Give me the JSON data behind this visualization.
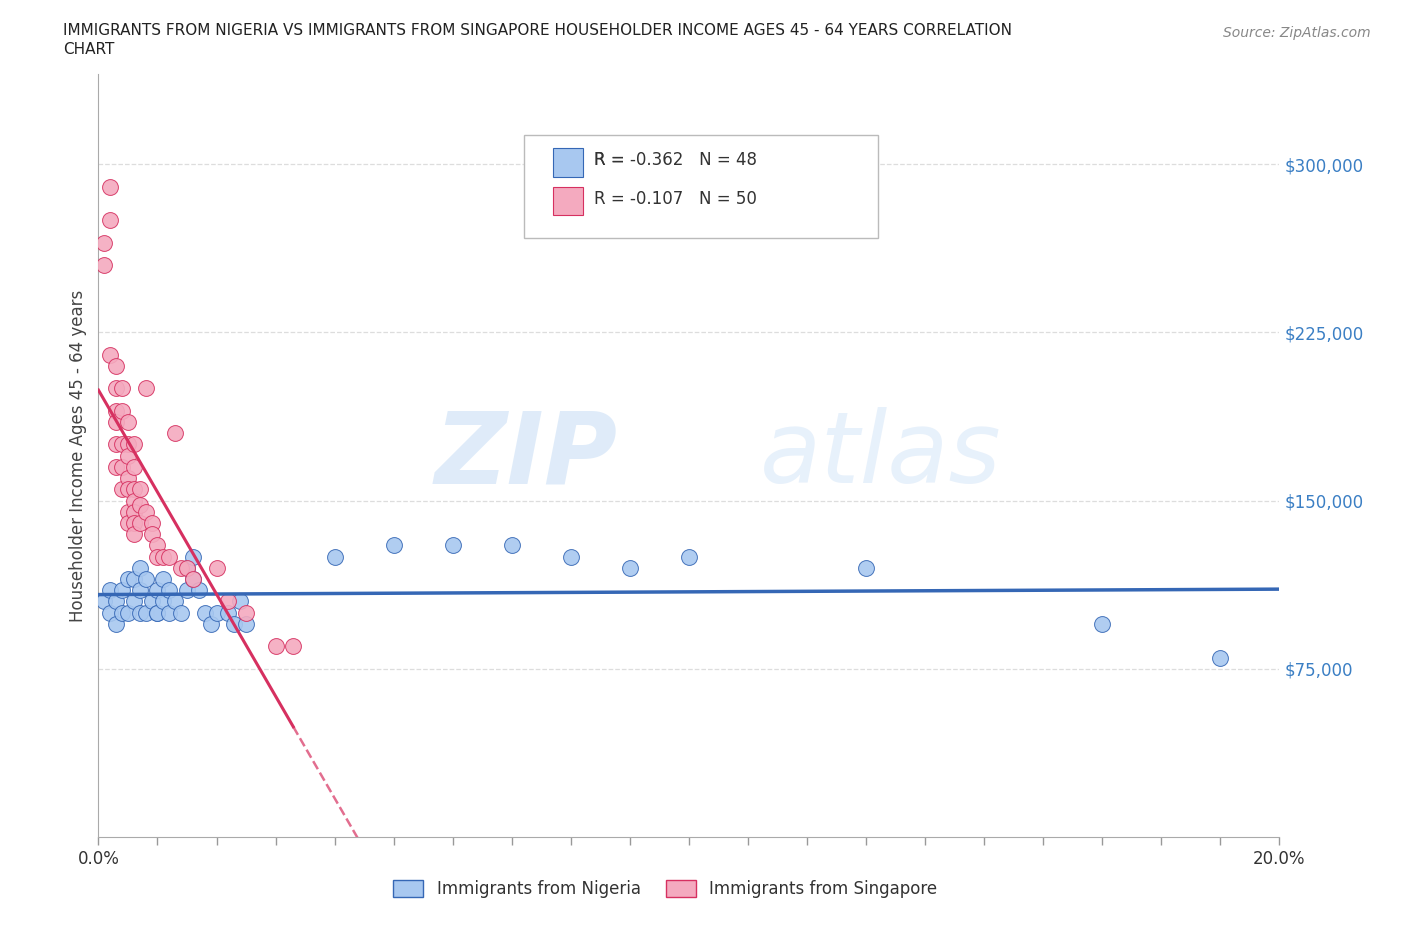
{
  "title_line1": "IMMIGRANTS FROM NIGERIA VS IMMIGRANTS FROM SINGAPORE HOUSEHOLDER INCOME AGES 45 - 64 YEARS CORRELATION",
  "title_line2": "CHART",
  "source": "Source: ZipAtlas.com",
  "ylabel": "Householder Income Ages 45 - 64 years",
  "ytick_labels": [
    "$75,000",
    "$150,000",
    "$225,000",
    "$300,000"
  ],
  "ytick_vals": [
    75000,
    150000,
    225000,
    300000
  ],
  "xlim": [
    0.0,
    0.2
  ],
  "ylim": [
    0,
    340000
  ],
  "nigeria_R": -0.362,
  "nigeria_N": 48,
  "singapore_R": -0.107,
  "singapore_N": 50,
  "nigeria_color": "#A8C8F0",
  "singapore_color": "#F4AABF",
  "nigeria_line_color": "#3567B5",
  "singapore_line_color": "#D63060",
  "nigeria_scatter_x": [
    0.001,
    0.002,
    0.002,
    0.003,
    0.003,
    0.004,
    0.004,
    0.005,
    0.005,
    0.006,
    0.006,
    0.007,
    0.007,
    0.007,
    0.008,
    0.008,
    0.009,
    0.01,
    0.01,
    0.01,
    0.011,
    0.011,
    0.012,
    0.012,
    0.013,
    0.014,
    0.015,
    0.015,
    0.016,
    0.016,
    0.017,
    0.018,
    0.019,
    0.02,
    0.022,
    0.023,
    0.024,
    0.025,
    0.04,
    0.05,
    0.06,
    0.07,
    0.08,
    0.09,
    0.1,
    0.13,
    0.17,
    0.19
  ],
  "nigeria_scatter_y": [
    105000,
    100000,
    110000,
    95000,
    105000,
    100000,
    110000,
    100000,
    115000,
    105000,
    115000,
    100000,
    110000,
    120000,
    100000,
    115000,
    105000,
    100000,
    110000,
    100000,
    105000,
    115000,
    100000,
    110000,
    105000,
    100000,
    110000,
    120000,
    115000,
    125000,
    110000,
    100000,
    95000,
    100000,
    100000,
    95000,
    105000,
    95000,
    125000,
    130000,
    130000,
    130000,
    125000,
    120000,
    125000,
    120000,
    95000,
    80000
  ],
  "singapore_scatter_x": [
    0.001,
    0.001,
    0.002,
    0.002,
    0.002,
    0.003,
    0.003,
    0.003,
    0.003,
    0.003,
    0.003,
    0.004,
    0.004,
    0.004,
    0.004,
    0.004,
    0.005,
    0.005,
    0.005,
    0.005,
    0.005,
    0.005,
    0.005,
    0.006,
    0.006,
    0.006,
    0.006,
    0.006,
    0.006,
    0.006,
    0.007,
    0.007,
    0.007,
    0.008,
    0.008,
    0.009,
    0.009,
    0.01,
    0.01,
    0.011,
    0.012,
    0.013,
    0.014,
    0.015,
    0.016,
    0.02,
    0.022,
    0.025,
    0.03,
    0.033
  ],
  "singapore_scatter_y": [
    255000,
    265000,
    290000,
    275000,
    215000,
    210000,
    200000,
    190000,
    185000,
    175000,
    165000,
    200000,
    190000,
    175000,
    165000,
    155000,
    185000,
    175000,
    170000,
    160000,
    155000,
    145000,
    140000,
    175000,
    165000,
    155000,
    150000,
    145000,
    140000,
    135000,
    155000,
    148000,
    140000,
    200000,
    145000,
    140000,
    135000,
    130000,
    125000,
    125000,
    125000,
    180000,
    120000,
    120000,
    115000,
    120000,
    105000,
    100000,
    85000,
    85000
  ],
  "watermark_zip": "ZIP",
  "watermark_atlas": "atlas",
  "background_color": "#FFFFFF",
  "grid_color": "#DDDDDD",
  "legend_nigeria_label": "Immigrants from Nigeria",
  "legend_singapore_label": "Immigrants from Singapore"
}
